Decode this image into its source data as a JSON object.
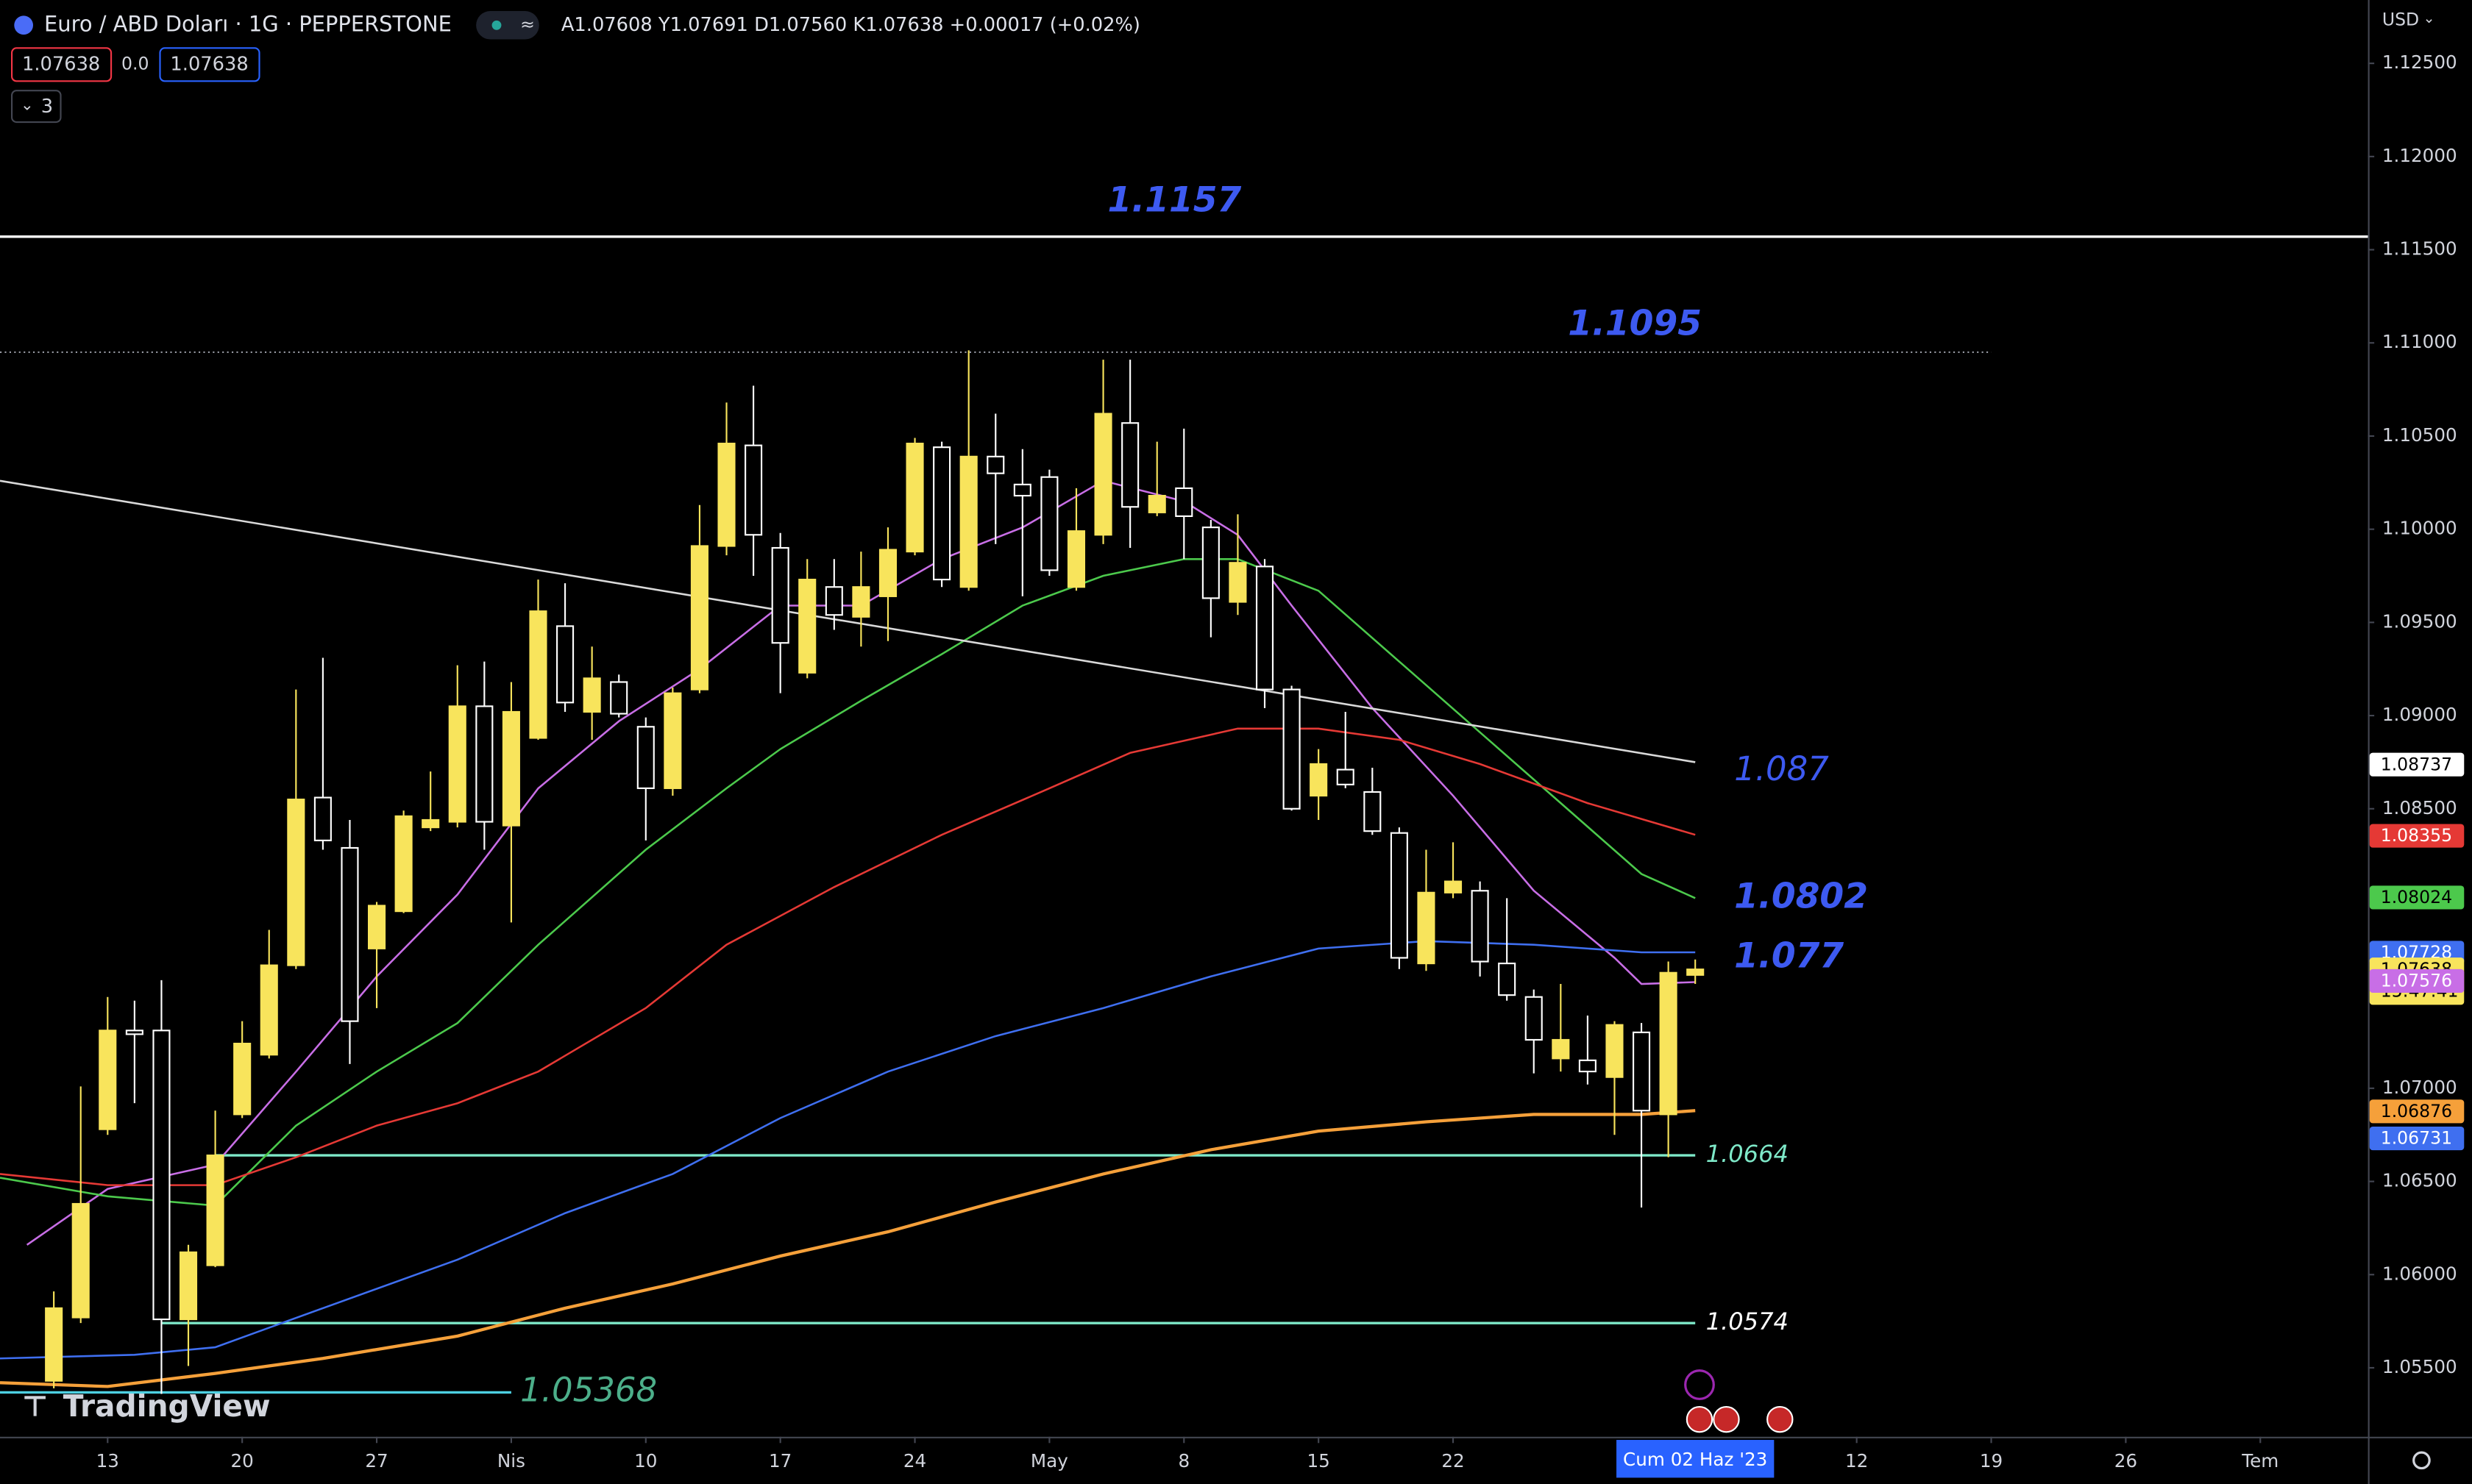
{
  "header": {
    "symbol": "Euro / ABD Doları · 1G · PEPPERSTONE",
    "ohlc": "A1.07608 Y1.07691 D1.07560 K1.07638 +0.00017 (+0.02%)",
    "bid": "1.07638",
    "spread": "0.0",
    "ask": "1.07638",
    "indicators": "3",
    "currency": "USD",
    "logo": "TradingView"
  },
  "chart_data": {
    "type": "candlestick",
    "x": [
      "2023-03-09",
      "2023-03-10",
      "2023-03-13",
      "2023-03-14",
      "2023-03-15",
      "2023-03-16",
      "2023-03-17",
      "2023-03-20",
      "2023-03-21",
      "2023-03-22",
      "2023-03-23",
      "2023-03-24",
      "2023-03-27",
      "2023-03-28",
      "2023-03-29",
      "2023-03-30",
      "2023-03-31",
      "2023-04-03",
      "2023-04-04",
      "2023-04-05",
      "2023-04-06",
      "2023-04-07",
      "2023-04-10",
      "2023-04-11",
      "2023-04-12",
      "2023-04-13",
      "2023-04-14",
      "2023-04-17",
      "2023-04-18",
      "2023-04-19",
      "2023-04-20",
      "2023-04-21",
      "2023-04-24",
      "2023-04-25",
      "2023-04-26",
      "2023-04-27",
      "2023-04-28",
      "2023-05-01",
      "2023-05-02",
      "2023-05-03",
      "2023-05-04",
      "2023-05-05",
      "2023-05-08",
      "2023-05-09",
      "2023-05-10",
      "2023-05-11",
      "2023-05-12",
      "2023-05-15",
      "2023-05-16",
      "2023-05-17",
      "2023-05-18",
      "2023-05-19",
      "2023-05-22",
      "2023-05-23",
      "2023-05-24",
      "2023-05-25",
      "2023-05-26",
      "2023-05-29",
      "2023-05-30",
      "2023-05-31",
      "2023-06-01",
      "2023-06-02"
    ],
    "open": [
      1.0543,
      1.0577,
      1.0678,
      1.0731,
      1.0731,
      1.0576,
      1.0605,
      1.0686,
      1.0718,
      1.0766,
      1.0856,
      1.0829,
      1.0775,
      1.0795,
      1.084,
      1.0843,
      1.0905,
      1.0841,
      1.0888,
      1.0948,
      1.0902,
      1.0918,
      1.0894,
      1.0861,
      1.0914,
      1.0991,
      1.1045,
      1.099,
      1.0923,
      1.0969,
      1.0953,
      1.0964,
      1.0988,
      1.1044,
      1.0969,
      1.1039,
      1.1024,
      1.1028,
      1.0969,
      1.0997,
      1.1057,
      1.1009,
      1.1022,
      1.1001,
      1.0961,
      1.098,
      1.0914,
      1.0857,
      1.0871,
      1.0859,
      1.0837,
      1.0767,
      1.0805,
      1.0806,
      1.0767,
      1.0749,
      1.0716,
      1.0715,
      1.0706,
      1.073,
      1.0686,
      1.07608
    ],
    "high": [
      1.0591,
      1.0701,
      1.0749,
      1.0747,
      1.0758,
      1.0616,
      1.0688,
      1.0736,
      1.0785,
      1.0914,
      1.0931,
      1.0844,
      1.08,
      1.0849,
      1.087,
      1.0927,
      1.0929,
      1.0918,
      1.0973,
      1.0971,
      1.0937,
      1.0922,
      1.0899,
      1.0915,
      1.1013,
      1.1068,
      1.1077,
      1.0998,
      1.0984,
      1.0984,
      1.0988,
      1.1001,
      1.1049,
      1.1047,
      1.1096,
      1.1062,
      1.1043,
      1.1032,
      1.1022,
      1.1091,
      1.1091,
      1.1047,
      1.1054,
      1.1005,
      1.1008,
      1.0984,
      1.0916,
      1.0882,
      1.0902,
      1.0872,
      1.084,
      1.0828,
      1.0832,
      1.0811,
      1.0802,
      1.0753,
      1.0756,
      1.0739,
      1.0736,
      1.0735,
      1.0768,
      1.07691
    ],
    "low": [
      1.0539,
      1.0574,
      1.0675,
      1.0692,
      1.0536,
      1.0551,
      1.0604,
      1.0684,
      1.0716,
      1.0764,
      1.0828,
      1.0713,
      1.0743,
      1.0794,
      1.0838,
      1.084,
      1.0828,
      1.0789,
      1.0887,
      1.0902,
      1.0887,
      1.0899,
      1.0833,
      1.0857,
      1.0912,
      1.0986,
      1.0975,
      1.0912,
      1.092,
      1.0946,
      1.0937,
      1.094,
      1.0986,
      1.0969,
      1.0967,
      1.0992,
      1.0964,
      1.0975,
      1.0967,
      1.0992,
      1.099,
      1.1007,
      1.0984,
      1.0942,
      1.0954,
      1.0904,
      1.0849,
      1.0844,
      1.0861,
      1.0836,
      1.0764,
      1.0763,
      1.0802,
      1.076,
      1.0747,
      1.0708,
      1.0709,
      1.0702,
      1.0675,
      1.0636,
      1.0663,
      1.0756
    ],
    "close": [
      1.0582,
      1.0638,
      1.0731,
      1.0729,
      1.0576,
      1.0612,
      1.0664,
      1.0724,
      1.0766,
      1.0855,
      1.0833,
      1.0736,
      1.0798,
      1.0846,
      1.0844,
      1.0905,
      1.0843,
      1.0902,
      1.0956,
      1.0907,
      1.092,
      1.0901,
      1.0861,
      1.0912,
      1.0991,
      1.1046,
      1.0997,
      1.0939,
      1.0973,
      1.0954,
      1.0969,
      1.0989,
      1.1046,
      1.0973,
      1.1039,
      1.103,
      1.1018,
      1.0978,
      1.0999,
      1.1062,
      1.1012,
      1.1018,
      1.1007,
      1.0963,
      1.0982,
      1.0914,
      1.085,
      1.0874,
      1.0863,
      1.0838,
      1.077,
      1.0805,
      1.0811,
      1.0768,
      1.075,
      1.0726,
      1.0726,
      1.0709,
      1.0734,
      1.0688,
      1.0762,
      1.07638
    ],
    "up_color": "#f8e45c",
    "down_color": "#ffffff",
    "xlim": [
      "2023-03-07",
      "2023-07-07"
    ],
    "xticks": [
      {
        "value": "2023-03-13",
        "label": "13"
      },
      {
        "value": "2023-03-20",
        "label": "20"
      },
      {
        "value": "2023-03-27",
        "label": "27"
      },
      {
        "value": "2023-04-03",
        "label": "Nis"
      },
      {
        "value": "2023-04-10",
        "label": "10"
      },
      {
        "value": "2023-04-17",
        "label": "17"
      },
      {
        "value": "2023-04-24",
        "label": "24"
      },
      {
        "value": "2023-05-01",
        "label": "May"
      },
      {
        "value": "2023-05-08",
        "label": "8"
      },
      {
        "value": "2023-05-15",
        "label": "15"
      },
      {
        "value": "2023-05-22",
        "label": "22"
      },
      {
        "value": "2023-06-12",
        "label": "12"
      },
      {
        "value": "2023-06-19",
        "label": "19"
      },
      {
        "value": "2023-06-26",
        "label": "26"
      },
      {
        "value": "2023-07-03",
        "label": "Tem"
      }
    ],
    "ylim": [
      1.0513,
      1.1284
    ],
    "yticks": [
      {
        "value": 1.125,
        "label": "1.12500"
      },
      {
        "value": 1.12,
        "label": "1.12000"
      },
      {
        "value": 1.115,
        "label": "1.11500"
      },
      {
        "value": 1.11,
        "label": "1.11000"
      },
      {
        "value": 1.105,
        "label": "1.10500"
      },
      {
        "value": 1.1,
        "label": "1.10000"
      },
      {
        "value": 1.095,
        "label": "1.09500"
      },
      {
        "value": 1.09,
        "label": "1.09000"
      },
      {
        "value": 1.085,
        "label": "1.08500"
      },
      {
        "value": 1.07,
        "label": "1.07000"
      },
      {
        "value": 1.065,
        "label": "1.06500"
      },
      {
        "value": 1.06,
        "label": "1.06000"
      },
      {
        "value": 1.055,
        "label": "1.05500"
      }
    ],
    "overlays": [
      {
        "color": "#c86ee6",
        "x": [
          "2023-03-08",
          "2023-03-13",
          "2023-03-17",
          "2023-03-22",
          "2023-03-27",
          "2023-03-30",
          "2023-04-04",
          "2023-04-07",
          "2023-04-12",
          "2023-04-17",
          "2023-04-20",
          "2023-04-25",
          "2023-04-28",
          "2023-05-03",
          "2023-05-08",
          "2023-05-10",
          "2023-05-12",
          "2023-05-17",
          "2023-05-22",
          "2023-05-25",
          "2023-05-30",
          "2023-05-31",
          "2023-06-02"
        ],
        "values": [
          1.0616,
          1.0646,
          1.0659,
          1.0709,
          1.076,
          1.0804,
          1.0861,
          1.0897,
          1.0925,
          1.0959,
          1.0959,
          1.0984,
          1.1001,
          1.1026,
          1.1015,
          1.0997,
          1.0959,
          1.0904,
          1.0857,
          1.0806,
          1.077,
          1.0756,
          1.0757
        ]
      },
      {
        "color": "#4cc94c",
        "x": [
          "2023-03-07",
          "2023-03-13",
          "2023-03-17",
          "2023-03-22",
          "2023-03-27",
          "2023-03-30",
          "2023-04-04",
          "2023-04-10",
          "2023-04-13",
          "2023-04-17",
          "2023-04-20",
          "2023-04-25",
          "2023-04-28",
          "2023-05-03",
          "2023-05-08",
          "2023-05-10",
          "2023-05-15",
          "2023-05-18",
          "2023-05-23",
          "2023-05-26",
          "2023-05-31",
          "2023-06-02"
        ],
        "values": [
          1.0652,
          1.0642,
          1.0637,
          1.068,
          1.0709,
          1.0735,
          1.0777,
          1.0828,
          1.0861,
          1.0882,
          1.0908,
          1.0933,
          1.0959,
          1.0975,
          1.0984,
          1.0984,
          1.0967,
          1.0929,
          1.0891,
          1.0853,
          1.0815,
          1.0802
        ]
      },
      {
        "color": "#e53935",
        "x": [
          "2023-03-07",
          "2023-03-13",
          "2023-03-17",
          "2023-03-22",
          "2023-03-27",
          "2023-03-30",
          "2023-04-04",
          "2023-04-10",
          "2023-04-13",
          "2023-04-19",
          "2023-04-25",
          "2023-05-01",
          "2023-05-04",
          "2023-05-10",
          "2023-05-15",
          "2023-05-18",
          "2023-05-23",
          "2023-05-29",
          "2023-06-02"
        ],
        "values": [
          1.0654,
          1.0648,
          1.0648,
          1.0663,
          1.068,
          1.0692,
          1.0709,
          1.0743,
          1.0777,
          1.0808,
          1.0836,
          1.0861,
          1.088,
          1.0893,
          1.0893,
          1.0887,
          1.0874,
          1.0853,
          1.0836
        ]
      },
      {
        "color": "#3f6ff0",
        "x": [
          "2023-03-07",
          "2023-03-14",
          "2023-03-17",
          "2023-03-23",
          "2023-03-30",
          "2023-04-05",
          "2023-04-11",
          "2023-04-17",
          "2023-04-21",
          "2023-04-27",
          "2023-05-03",
          "2023-05-09",
          "2023-05-15",
          "2023-05-19",
          "2023-05-25",
          "2023-05-31",
          "2023-06-02"
        ],
        "values": [
          1.0555,
          1.0557,
          1.0561,
          1.0582,
          1.0608,
          1.0633,
          1.0654,
          1.0684,
          1.0709,
          1.0728,
          1.0743,
          1.076,
          1.0775,
          1.0779,
          1.0777,
          1.0773,
          1.0773
        ]
      },
      {
        "color": "#f5a03a",
        "x": [
          "2023-03-07",
          "2023-03-13",
          "2023-03-17",
          "2023-03-23",
          "2023-03-30",
          "2023-04-05",
          "2023-04-11",
          "2023-04-17",
          "2023-04-21",
          "2023-04-27",
          "2023-05-03",
          "2023-05-09",
          "2023-05-15",
          "2023-05-19",
          "2023-05-25",
          "2023-05-31",
          "2023-06-02"
        ],
        "values": [
          1.0542,
          1.054,
          1.0547,
          1.0555,
          1.0567,
          1.0582,
          1.0595,
          1.061,
          1.0623,
          1.0639,
          1.0654,
          1.0667,
          1.0677,
          1.0682,
          1.0686,
          1.0686,
          1.0688
        ]
      },
      {
        "color": "#d9d9d9",
        "x": [
          "2023-03-07",
          "2023-06-02"
        ],
        "values": [
          1.1026,
          1.0875
        ]
      }
    ],
    "levels": [
      {
        "value": 1.1157,
        "label": "1.1157",
        "line": "solid",
        "line_color": "#ffffff",
        "label_color": "#3d5af1",
        "label_style": "large",
        "from": "2023-03-07",
        "to": "2023-07-07"
      },
      {
        "value": 1.1095,
        "label": "1.1095",
        "line": "dotted",
        "line_color": "#9598a1",
        "label_color": "#3d5af1",
        "label_style": "large",
        "from": "2023-03-07",
        "to": "2023-06-19"
      },
      {
        "value": 1.087,
        "label": "1.087",
        "line": "none",
        "label_color": "#3d5af1",
        "label_style": "medium"
      },
      {
        "value": 1.0802,
        "label": "1.0802",
        "line": "none",
        "label_color": "#3d5af1",
        "label_style": "large"
      },
      {
        "value": 1.077,
        "label": "1.077",
        "line": "none",
        "label_color": "#3d5af1",
        "label_style": "large"
      },
      {
        "value": 1.0664,
        "label": "1.0664",
        "line": "solid",
        "line_color": "#7ee8c8",
        "label_color": "#7ee8c8",
        "label_style": "small",
        "from": "2023-03-17",
        "to": "2023-06-02"
      },
      {
        "value": 1.0574,
        "label": "1.0574",
        "line": "solid",
        "line_color": "#7ee8c8",
        "label_color": "#ffffff",
        "label_style": "small",
        "from": "2023-03-15",
        "to": "2023-06-02"
      },
      {
        "value": 1.05368,
        "label": "1.05368",
        "line": "solid",
        "line_color": "#4dd0e1",
        "label_color": "#4caf8a",
        "label_style": "medium",
        "from": "2023-03-07",
        "to": "2023-04-03"
      }
    ],
    "price_tags": [
      {
        "value": 1.08737,
        "label": "1.08737",
        "color": "#ffffff",
        "text_color": "#000000"
      },
      {
        "value": 1.08355,
        "label": "1.08355",
        "color": "#e53935",
        "text_color": "#ffffff"
      },
      {
        "value": 1.08024,
        "label": "1.08024",
        "color": "#4cc94c",
        "text_color": "#000000"
      },
      {
        "value": 1.07728,
        "label": "1.07728",
        "color": "#3f6ff0",
        "text_color": "#ffffff"
      },
      {
        "value": 1.07638,
        "label": "1.07638",
        "color": "#f8e45c",
        "text_color": "#000000"
      },
      {
        "value": 1.07576,
        "label": "1.07576",
        "color": "#c86ee6",
        "text_color": "#ffffff"
      },
      {
        "value": 1.06876,
        "label": "1.06876",
        "color": "#f5a03a",
        "text_color": "#000000"
      },
      {
        "value": 1.06731,
        "label": "1.06731",
        "color": "#3f6ff0",
        "text_color": "#ffffff"
      }
    ],
    "countdown": "15:47:41",
    "crosshair_date": "2023-06-02",
    "crosshair_label": "Cum 02 Haz '23"
  }
}
